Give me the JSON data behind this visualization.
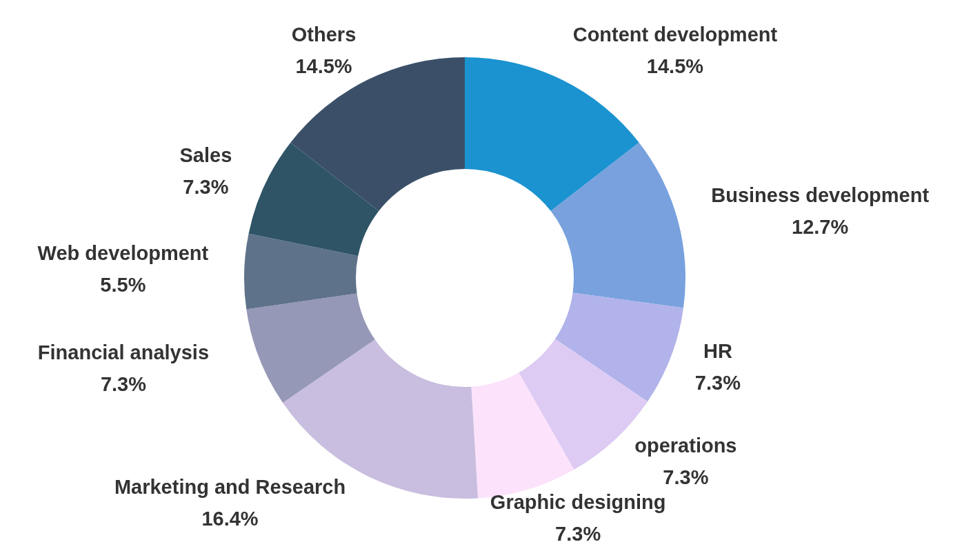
{
  "chart_data": {
    "type": "donut",
    "categories": [
      "Content development",
      "Business development",
      "HR",
      "operations",
      "Graphic designing",
      "Marketing and Research",
      "Financial analysis",
      "Web development",
      "Sales",
      "Others"
    ],
    "values": [
      14.5,
      12.7,
      7.3,
      7.3,
      7.3,
      16.4,
      7.3,
      5.5,
      7.3,
      14.5
    ],
    "value_labels": [
      "14.5%",
      "12.7%",
      "7.3%",
      "7.3%",
      "7.3%",
      "16.4%",
      "7.3%",
      "5.5%",
      "7.3%",
      "14.5%"
    ],
    "colors": [
      "#1b93d0",
      "#78a1de",
      "#b1b3ea",
      "#ddcbf3",
      "#fce2fb",
      "#c9bedf",
      "#9598b6",
      "#5e7289",
      "#2e5466",
      "#3b5068"
    ]
  }
}
